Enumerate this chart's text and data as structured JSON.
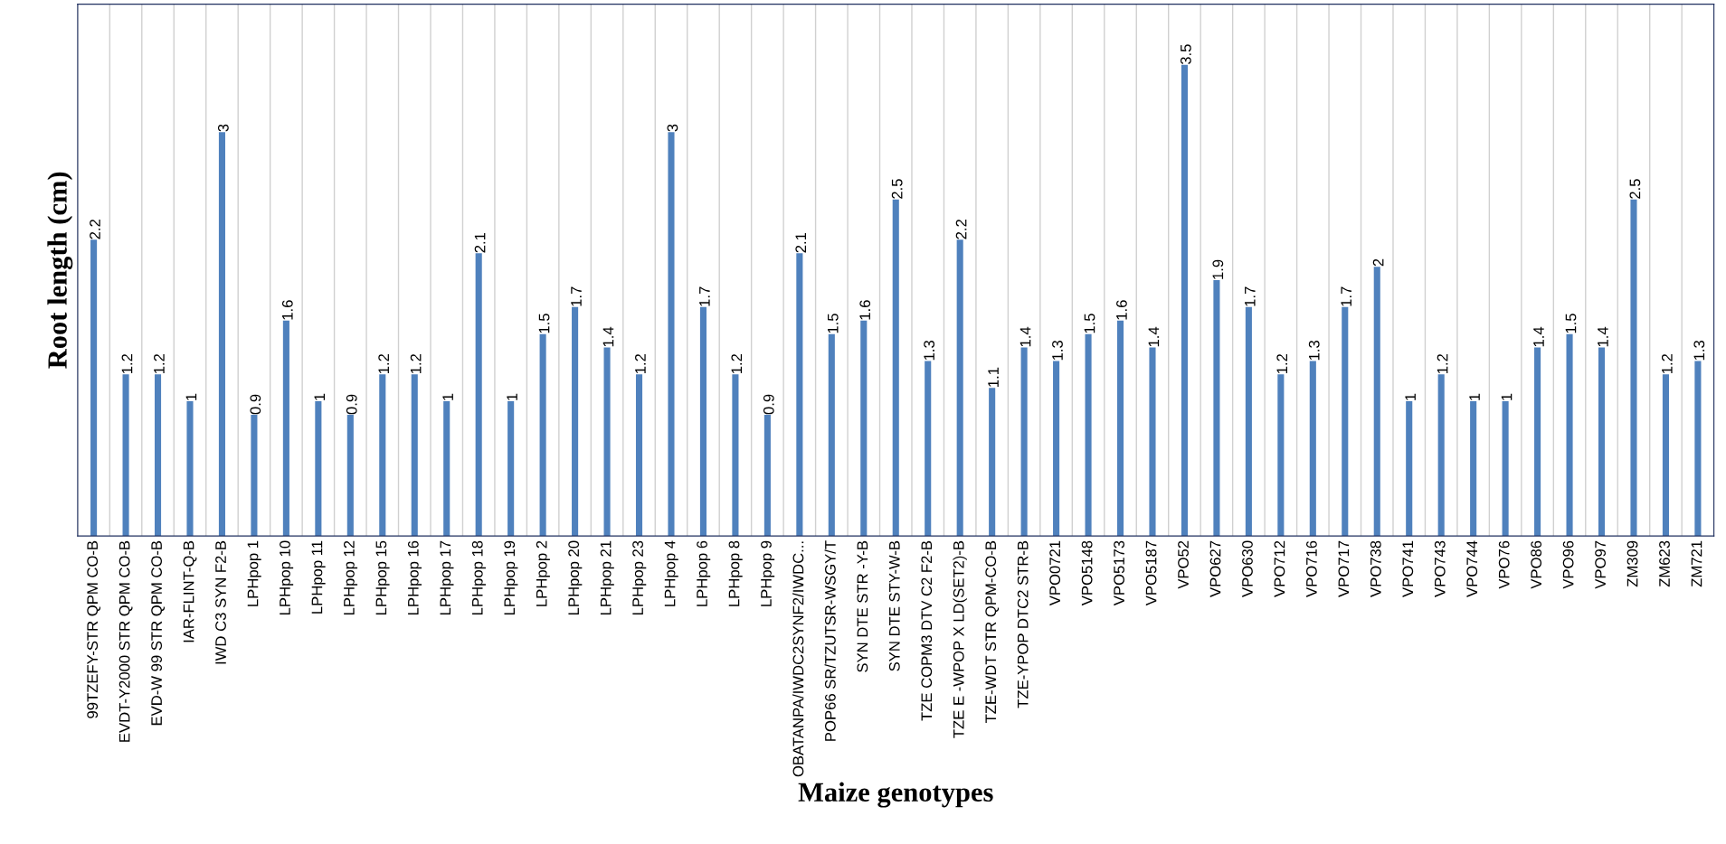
{
  "chart_data": {
    "type": "bar",
    "xlabel": "Maize genotypes",
    "ylabel": "Root length (cm)",
    "categories": [
      "99TZEFY-STR QPM CO-B",
      "EVDT-Y2000 STR QPM CO-B",
      "EVD-W 99 STR QPM CO-B",
      "IAR-FLINT-Q-B",
      "IWD C3 SYN F2-B",
      "LPHpop 1",
      "LPHpop 10",
      "LPHpop 11",
      "LPHpop 12",
      "LPHpop 15",
      "LPHpop 16",
      "LPHpop 17",
      "LPHpop 18",
      "LPHpop 19",
      "LPHpop 2",
      "LPHpop 20",
      "LPHpop 21",
      "LPHpop 23",
      "LPHpop 4",
      "LPHpop 6",
      "LPHpop 8",
      "LPHpop 9",
      "OBATANPA/IWDC2SYNF2/IWDC...",
      "POP66 SR/TZUTSR-WSGY/T",
      "SYN DTE STR -Y-B",
      "SYN DTE STY-W-B",
      "TZE COPM3 DTV C2 F2-B",
      "TZE E -WPOP X LD(SET2)-B",
      "TZE-WDT STR QPM-CO-B",
      "TZE-YPOP DTC2 STR-B",
      "VPO0721",
      "VPO5148",
      "VPO5173",
      "VPO5187",
      "VPO52",
      "VPO627",
      "VPO630",
      "VPO712",
      "VPO716",
      "VPO717",
      "VPO738",
      "VPO741",
      "VPO743",
      "VPO744",
      "VPO76",
      "VPO86",
      "VPO96",
      "VPO97",
      "ZM309",
      "ZM623",
      "ZM721"
    ],
    "values": [
      2.2,
      1.2,
      1.2,
      1,
      3,
      0.9,
      1.6,
      1,
      0.9,
      1.2,
      1.2,
      1,
      2.1,
      1,
      1.5,
      1.7,
      1.4,
      1.2,
      3,
      1.7,
      1.2,
      0.9,
      2.1,
      1.5,
      1.6,
      2.5,
      1.3,
      2.2,
      1.1,
      1.4,
      1.3,
      1.5,
      1.6,
      1.4,
      3.5,
      1.9,
      1.7,
      1.2,
      1.3,
      1.7,
      2,
      1,
      1.2,
      1,
      1,
      1.4,
      1.5,
      1.4,
      2.5,
      1.2,
      1.3
    ],
    "color": "#4f81bd",
    "data_labels": true,
    "ylim": [
      0,
      3.95
    ],
    "tick_labels": "x",
    "grid": "x",
    "legend": false
  }
}
